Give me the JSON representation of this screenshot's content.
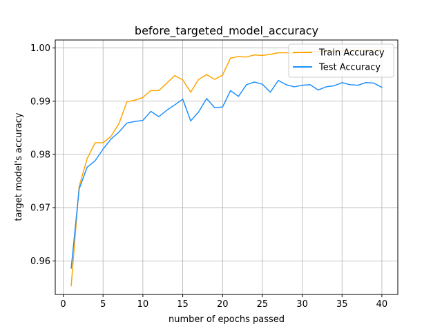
{
  "chart_data": {
    "type": "line",
    "title": "before_targeted_model_accuracy",
    "xlabel": "number of epochs passed",
    "ylabel": "target model's accuracy",
    "xlim": [
      -1,
      42
    ],
    "ylim": [
      0.9537,
      1.0015
    ],
    "x_ticks": [
      0,
      5,
      10,
      15,
      20,
      25,
      30,
      35,
      40
    ],
    "y_ticks": [
      0.96,
      0.97,
      0.98,
      0.99,
      1.0
    ],
    "y_tick_labels": [
      "0.96",
      "0.97",
      "0.98",
      "0.99",
      "1.00"
    ],
    "grid": true,
    "legend_position": "upper-right",
    "x": [
      1,
      2,
      3,
      4,
      5,
      6,
      7,
      8,
      9,
      10,
      11,
      12,
      13,
      14,
      15,
      16,
      17,
      18,
      19,
      20,
      21,
      22,
      23,
      24,
      25,
      26,
      27,
      28,
      29,
      30,
      31,
      32,
      33,
      34,
      35,
      36,
      37,
      38,
      39,
      40
    ],
    "series": [
      {
        "name": "Train Accuracy",
        "color": "#ffa500",
        "values": [
          0.9553,
          0.974,
          0.9792,
          0.9822,
          0.9822,
          0.9834,
          0.9858,
          0.9899,
          0.9902,
          0.9907,
          0.992,
          0.992,
          0.9934,
          0.9948,
          0.994,
          0.9917,
          0.9941,
          0.995,
          0.9941,
          0.9949,
          0.9981,
          0.9984,
          0.9983,
          0.9987,
          0.9986,
          0.9988,
          0.9991,
          0.9991,
          0.999,
          0.9992,
          0.9993,
          0.9993,
          0.9994,
          0.9994,
          0.9995,
          0.9995,
          0.9996,
          0.9996,
          0.9996,
          0.9997
        ]
      },
      {
        "name": "Test Accuracy",
        "color": "#1e90ff",
        "values": [
          0.9586,
          0.9735,
          0.9776,
          0.9788,
          0.981,
          0.9829,
          0.9842,
          0.9859,
          0.9862,
          0.9864,
          0.9881,
          0.9871,
          0.9883,
          0.9893,
          0.9904,
          0.9863,
          0.988,
          0.9905,
          0.9888,
          0.9889,
          0.992,
          0.9909,
          0.9931,
          0.9936,
          0.9932,
          0.9917,
          0.9939,
          0.9931,
          0.9927,
          0.993,
          0.9931,
          0.9921,
          0.9927,
          0.9929,
          0.9935,
          0.9931,
          0.993,
          0.9935,
          0.9934,
          0.9926
        ]
      }
    ]
  }
}
